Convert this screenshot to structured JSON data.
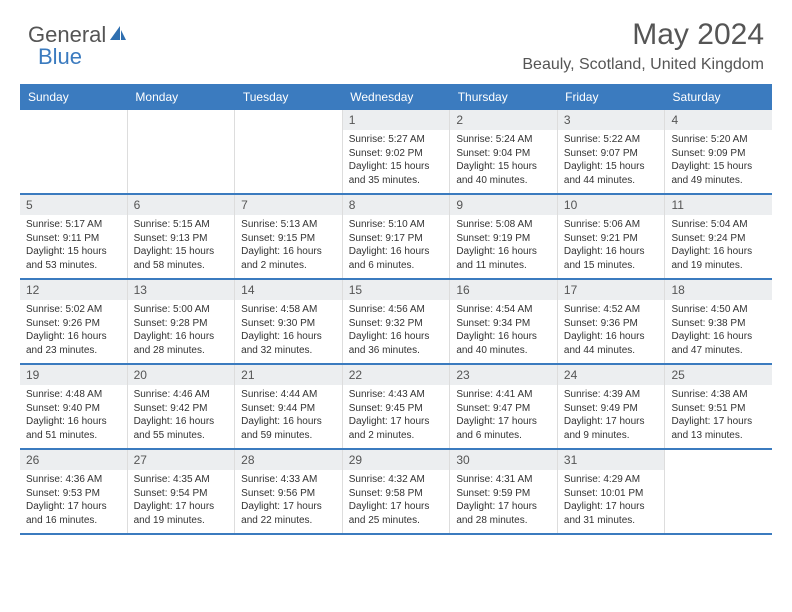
{
  "brand": {
    "part1": "General",
    "part2": "Blue"
  },
  "header": {
    "title": "May 2024",
    "location": "Beauly, Scotland, United Kingdom"
  },
  "colors": {
    "accent": "#3b7bbf",
    "dayHeaderBg": "#eceef0",
    "text": "#333333"
  },
  "dayNames": [
    "Sunday",
    "Monday",
    "Tuesday",
    "Wednesday",
    "Thursday",
    "Friday",
    "Saturday"
  ],
  "weeks": [
    [
      {
        "empty": true
      },
      {
        "empty": true
      },
      {
        "empty": true
      },
      {
        "day": "1",
        "sunrise": "Sunrise: 5:27 AM",
        "sunset": "Sunset: 9:02 PM",
        "daylight": "Daylight: 15 hours and 35 minutes."
      },
      {
        "day": "2",
        "sunrise": "Sunrise: 5:24 AM",
        "sunset": "Sunset: 9:04 PM",
        "daylight": "Daylight: 15 hours and 40 minutes."
      },
      {
        "day": "3",
        "sunrise": "Sunrise: 5:22 AM",
        "sunset": "Sunset: 9:07 PM",
        "daylight": "Daylight: 15 hours and 44 minutes."
      },
      {
        "day": "4",
        "sunrise": "Sunrise: 5:20 AM",
        "sunset": "Sunset: 9:09 PM",
        "daylight": "Daylight: 15 hours and 49 minutes."
      }
    ],
    [
      {
        "day": "5",
        "sunrise": "Sunrise: 5:17 AM",
        "sunset": "Sunset: 9:11 PM",
        "daylight": "Daylight: 15 hours and 53 minutes."
      },
      {
        "day": "6",
        "sunrise": "Sunrise: 5:15 AM",
        "sunset": "Sunset: 9:13 PM",
        "daylight": "Daylight: 15 hours and 58 minutes."
      },
      {
        "day": "7",
        "sunrise": "Sunrise: 5:13 AM",
        "sunset": "Sunset: 9:15 PM",
        "daylight": "Daylight: 16 hours and 2 minutes."
      },
      {
        "day": "8",
        "sunrise": "Sunrise: 5:10 AM",
        "sunset": "Sunset: 9:17 PM",
        "daylight": "Daylight: 16 hours and 6 minutes."
      },
      {
        "day": "9",
        "sunrise": "Sunrise: 5:08 AM",
        "sunset": "Sunset: 9:19 PM",
        "daylight": "Daylight: 16 hours and 11 minutes."
      },
      {
        "day": "10",
        "sunrise": "Sunrise: 5:06 AM",
        "sunset": "Sunset: 9:21 PM",
        "daylight": "Daylight: 16 hours and 15 minutes."
      },
      {
        "day": "11",
        "sunrise": "Sunrise: 5:04 AM",
        "sunset": "Sunset: 9:24 PM",
        "daylight": "Daylight: 16 hours and 19 minutes."
      }
    ],
    [
      {
        "day": "12",
        "sunrise": "Sunrise: 5:02 AM",
        "sunset": "Sunset: 9:26 PM",
        "daylight": "Daylight: 16 hours and 23 minutes."
      },
      {
        "day": "13",
        "sunrise": "Sunrise: 5:00 AM",
        "sunset": "Sunset: 9:28 PM",
        "daylight": "Daylight: 16 hours and 28 minutes."
      },
      {
        "day": "14",
        "sunrise": "Sunrise: 4:58 AM",
        "sunset": "Sunset: 9:30 PM",
        "daylight": "Daylight: 16 hours and 32 minutes."
      },
      {
        "day": "15",
        "sunrise": "Sunrise: 4:56 AM",
        "sunset": "Sunset: 9:32 PM",
        "daylight": "Daylight: 16 hours and 36 minutes."
      },
      {
        "day": "16",
        "sunrise": "Sunrise: 4:54 AM",
        "sunset": "Sunset: 9:34 PM",
        "daylight": "Daylight: 16 hours and 40 minutes."
      },
      {
        "day": "17",
        "sunrise": "Sunrise: 4:52 AM",
        "sunset": "Sunset: 9:36 PM",
        "daylight": "Daylight: 16 hours and 44 minutes."
      },
      {
        "day": "18",
        "sunrise": "Sunrise: 4:50 AM",
        "sunset": "Sunset: 9:38 PM",
        "daylight": "Daylight: 16 hours and 47 minutes."
      }
    ],
    [
      {
        "day": "19",
        "sunrise": "Sunrise: 4:48 AM",
        "sunset": "Sunset: 9:40 PM",
        "daylight": "Daylight: 16 hours and 51 minutes."
      },
      {
        "day": "20",
        "sunrise": "Sunrise: 4:46 AM",
        "sunset": "Sunset: 9:42 PM",
        "daylight": "Daylight: 16 hours and 55 minutes."
      },
      {
        "day": "21",
        "sunrise": "Sunrise: 4:44 AM",
        "sunset": "Sunset: 9:44 PM",
        "daylight": "Daylight: 16 hours and 59 minutes."
      },
      {
        "day": "22",
        "sunrise": "Sunrise: 4:43 AM",
        "sunset": "Sunset: 9:45 PM",
        "daylight": "Daylight: 17 hours and 2 minutes."
      },
      {
        "day": "23",
        "sunrise": "Sunrise: 4:41 AM",
        "sunset": "Sunset: 9:47 PM",
        "daylight": "Daylight: 17 hours and 6 minutes."
      },
      {
        "day": "24",
        "sunrise": "Sunrise: 4:39 AM",
        "sunset": "Sunset: 9:49 PM",
        "daylight": "Daylight: 17 hours and 9 minutes."
      },
      {
        "day": "25",
        "sunrise": "Sunrise: 4:38 AM",
        "sunset": "Sunset: 9:51 PM",
        "daylight": "Daylight: 17 hours and 13 minutes."
      }
    ],
    [
      {
        "day": "26",
        "sunrise": "Sunrise: 4:36 AM",
        "sunset": "Sunset: 9:53 PM",
        "daylight": "Daylight: 17 hours and 16 minutes."
      },
      {
        "day": "27",
        "sunrise": "Sunrise: 4:35 AM",
        "sunset": "Sunset: 9:54 PM",
        "daylight": "Daylight: 17 hours and 19 minutes."
      },
      {
        "day": "28",
        "sunrise": "Sunrise: 4:33 AM",
        "sunset": "Sunset: 9:56 PM",
        "daylight": "Daylight: 17 hours and 22 minutes."
      },
      {
        "day": "29",
        "sunrise": "Sunrise: 4:32 AM",
        "sunset": "Sunset: 9:58 PM",
        "daylight": "Daylight: 17 hours and 25 minutes."
      },
      {
        "day": "30",
        "sunrise": "Sunrise: 4:31 AM",
        "sunset": "Sunset: 9:59 PM",
        "daylight": "Daylight: 17 hours and 28 minutes."
      },
      {
        "day": "31",
        "sunrise": "Sunrise: 4:29 AM",
        "sunset": "Sunset: 10:01 PM",
        "daylight": "Daylight: 17 hours and 31 minutes."
      },
      {
        "empty": true
      }
    ]
  ]
}
